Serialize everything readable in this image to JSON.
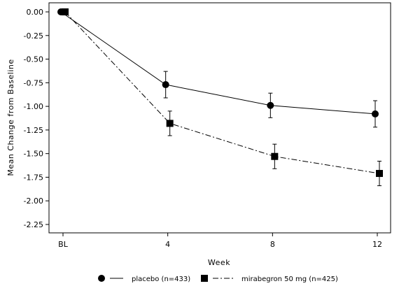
{
  "chart_data": {
    "type": "line",
    "title": "",
    "xlabel": "Week",
    "ylabel": "Mean Change from Baseline",
    "x_categories": [
      "BL",
      "4",
      "8",
      "12"
    ],
    "x_values": [
      0,
      4,
      8,
      12
    ],
    "ylim": [
      -2.35,
      0.05
    ],
    "yticks": [
      0.0,
      -0.25,
      -0.5,
      -0.75,
      -1.0,
      -1.25,
      -1.5,
      -1.75,
      -2.0,
      -2.25
    ],
    "ytick_labels": [
      "0.00",
      "-0.25",
      "-0.50",
      "-0.75",
      "-1.00",
      "-1.25",
      "-1.50",
      "-1.75",
      "-2.00",
      "-2.25"
    ],
    "grid": false,
    "legend_position": "bottom",
    "series": [
      {
        "name": "placebo (n=433)",
        "marker": "circle",
        "line_style": "solid",
        "x": [
          0,
          4,
          8,
          12
        ],
        "y": [
          0.0,
          -0.77,
          -0.99,
          -1.08
        ],
        "err": [
          0.0,
          0.14,
          0.13,
          0.14
        ]
      },
      {
        "name": "mirabegron 50 mg (n=425)",
        "marker": "square",
        "line_style": "dash-dot",
        "x": [
          0,
          4,
          8,
          12
        ],
        "y": [
          0.0,
          -1.18,
          -1.53,
          -1.71
        ],
        "err": [
          0.0,
          0.13,
          0.13,
          0.13
        ]
      }
    ]
  }
}
